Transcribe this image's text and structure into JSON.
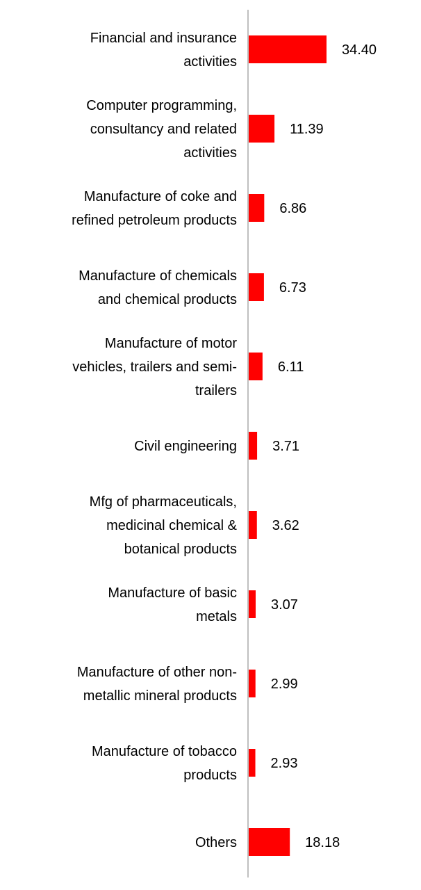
{
  "chart_data": {
    "type": "bar",
    "orientation": "horizontal",
    "categories": [
      [
        "Financial and insurance",
        "activities"
      ],
      [
        "Computer programming,",
        "consultancy and related",
        "activities"
      ],
      [
        "Manufacture of coke and",
        "refined petroleum products"
      ],
      [
        "Manufacture of chemicals",
        "and chemical products"
      ],
      [
        "Manufacture of motor",
        "vehicles, trailers and semi-",
        "trailers"
      ],
      [
        "Civil engineering"
      ],
      [
        "Mfg of pharmaceuticals,",
        "medicinal chemical &",
        "botanical products"
      ],
      [
        "Manufacture of basic",
        "metals"
      ],
      [
        "Manufacture of other non-",
        "metallic mineral products"
      ],
      [
        "Manufacture of tobacco",
        "products"
      ],
      [
        "Others"
      ]
    ],
    "values": [
      34.4,
      11.39,
      6.86,
      6.73,
      6.11,
      3.71,
      3.62,
      3.07,
      2.99,
      2.93,
      18.18
    ],
    "value_labels": [
      "34.40",
      "11.39",
      "6.86",
      "6.73",
      "6.11",
      "3.71",
      "3.62",
      "3.07",
      "2.99",
      "2.93",
      "18.18"
    ],
    "title": "",
    "xlabel": "",
    "ylabel": "",
    "xlim": [
      0,
      34.4
    ],
    "grid": false,
    "legend": "none",
    "bar_color": "#ff0000",
    "axis_color": "#bfbfbf"
  }
}
